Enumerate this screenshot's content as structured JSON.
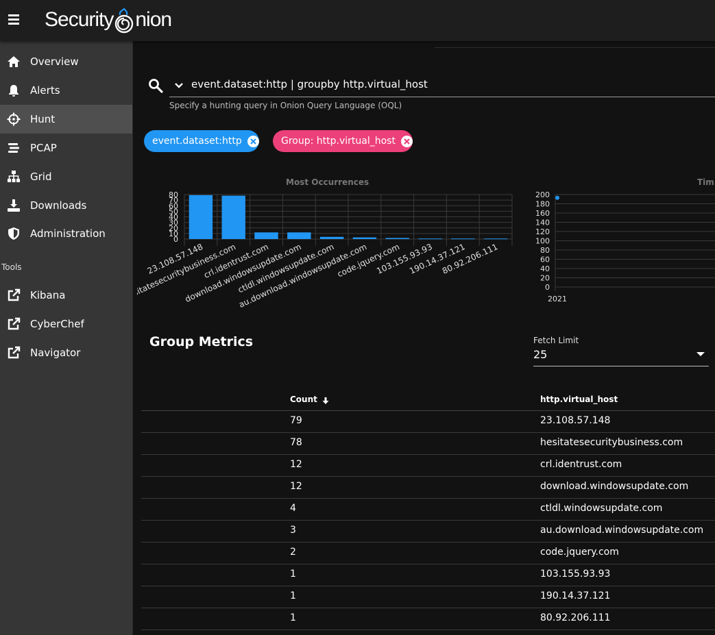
{
  "app": {
    "logo_left": "Security",
    "logo_right": "nion"
  },
  "sidebar": {
    "items": [
      {
        "label": "Overview",
        "icon": "home-icon"
      },
      {
        "label": "Alerts",
        "icon": "bell-icon"
      },
      {
        "label": "Hunt",
        "icon": "crosshairs-icon",
        "active": true
      },
      {
        "label": "PCAP",
        "icon": "stream-icon"
      },
      {
        "label": "Grid",
        "icon": "sitemap-icon"
      },
      {
        "label": "Downloads",
        "icon": "download-icon"
      },
      {
        "label": "Administration",
        "icon": "shield-icon"
      }
    ],
    "tools_label": "Tools",
    "tools": [
      {
        "label": "Kibana",
        "icon": "external-link-icon"
      },
      {
        "label": "CyberChef",
        "icon": "external-link-icon"
      },
      {
        "label": "Navigator",
        "icon": "external-link-icon"
      }
    ]
  },
  "search": {
    "query": "event.dataset:http | groupby http.virtual_host",
    "hint": "Specify a hunting query in Onion Query Language (OQL)"
  },
  "chips": [
    {
      "label": "event.dataset:http",
      "color": "#2196f3"
    },
    {
      "label": "Group: http.virtual_host",
      "color": "#ec407a"
    }
  ],
  "colors": {
    "accent": "#2196f3",
    "chip_pink": "#ec407a"
  },
  "chart_data": [
    {
      "type": "bar",
      "title": "Most Occurrences",
      "categories": [
        "23.108.57.148",
        "hesitatesecuritybusiness.com",
        "crl.identrust.com",
        "download.windowsupdate.com",
        "ctldl.windowsupdate.com",
        "au.download.windowsupdate.com",
        "code.jquery.com",
        "103.155.93.93",
        "190.14.37.121",
        "80.92.206.111"
      ],
      "values": [
        79,
        78,
        12,
        12,
        4,
        3,
        2,
        1,
        1,
        1
      ],
      "yticks": [
        "0",
        "10",
        "20",
        "30",
        "40",
        "50",
        "60",
        "70",
        "80"
      ],
      "ylim": [
        0,
        80
      ],
      "grid": true
    },
    {
      "type": "scatter",
      "title": "Tim",
      "x": [
        "2021"
      ],
      "values": [
        193
      ],
      "yticks": [
        "0",
        "20",
        "40",
        "60",
        "80",
        "100",
        "120",
        "140",
        "160",
        "180",
        "200"
      ],
      "ylim": [
        0,
        200
      ],
      "grid": true
    }
  ],
  "metrics": {
    "title": "Group Metrics",
    "fetch_limit_label": "Fetch Limit",
    "fetch_limit_value": "25",
    "columns": [
      "Count",
      "http.virtual_host"
    ],
    "rows": [
      {
        "count": "79",
        "host": "23.108.57.148"
      },
      {
        "count": "78",
        "host": "hesitatesecuritybusiness.com"
      },
      {
        "count": "12",
        "host": "crl.identrust.com"
      },
      {
        "count": "12",
        "host": "download.windowsupdate.com"
      },
      {
        "count": "4",
        "host": "ctldl.windowsupdate.com"
      },
      {
        "count": "3",
        "host": "au.download.windowsupdate.com"
      },
      {
        "count": "2",
        "host": "code.jquery.com"
      },
      {
        "count": "1",
        "host": "103.155.93.93"
      },
      {
        "count": "1",
        "host": "190.14.37.121"
      },
      {
        "count": "1",
        "host": "80.92.206.111"
      }
    ]
  }
}
